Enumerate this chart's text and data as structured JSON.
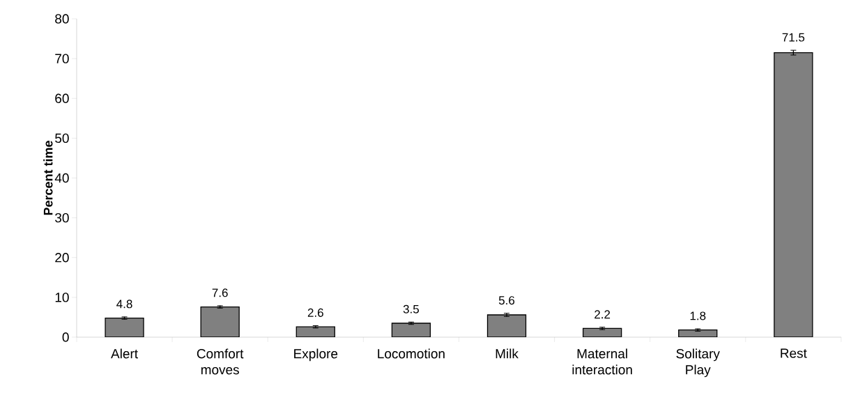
{
  "chart_data": {
    "type": "bar",
    "ylabel": "Percent time",
    "categories": [
      "Alert",
      "Comfort moves",
      "Explore",
      "Locomotion",
      "Milk",
      "Maternal interaction",
      "Solitary Play",
      "Rest"
    ],
    "values": [
      4.8,
      7.6,
      2.6,
      3.5,
      5.6,
      2.2,
      1.8,
      71.5
    ],
    "errors": [
      0.3,
      0.3,
      0.3,
      0.3,
      0.4,
      0.3,
      0.3,
      0.6
    ],
    "color": "#808080",
    "ylim": [
      0,
      80
    ],
    "yticks": [
      0,
      10,
      20,
      30,
      40,
      50,
      60,
      70,
      80
    ],
    "data_labels": true
  }
}
